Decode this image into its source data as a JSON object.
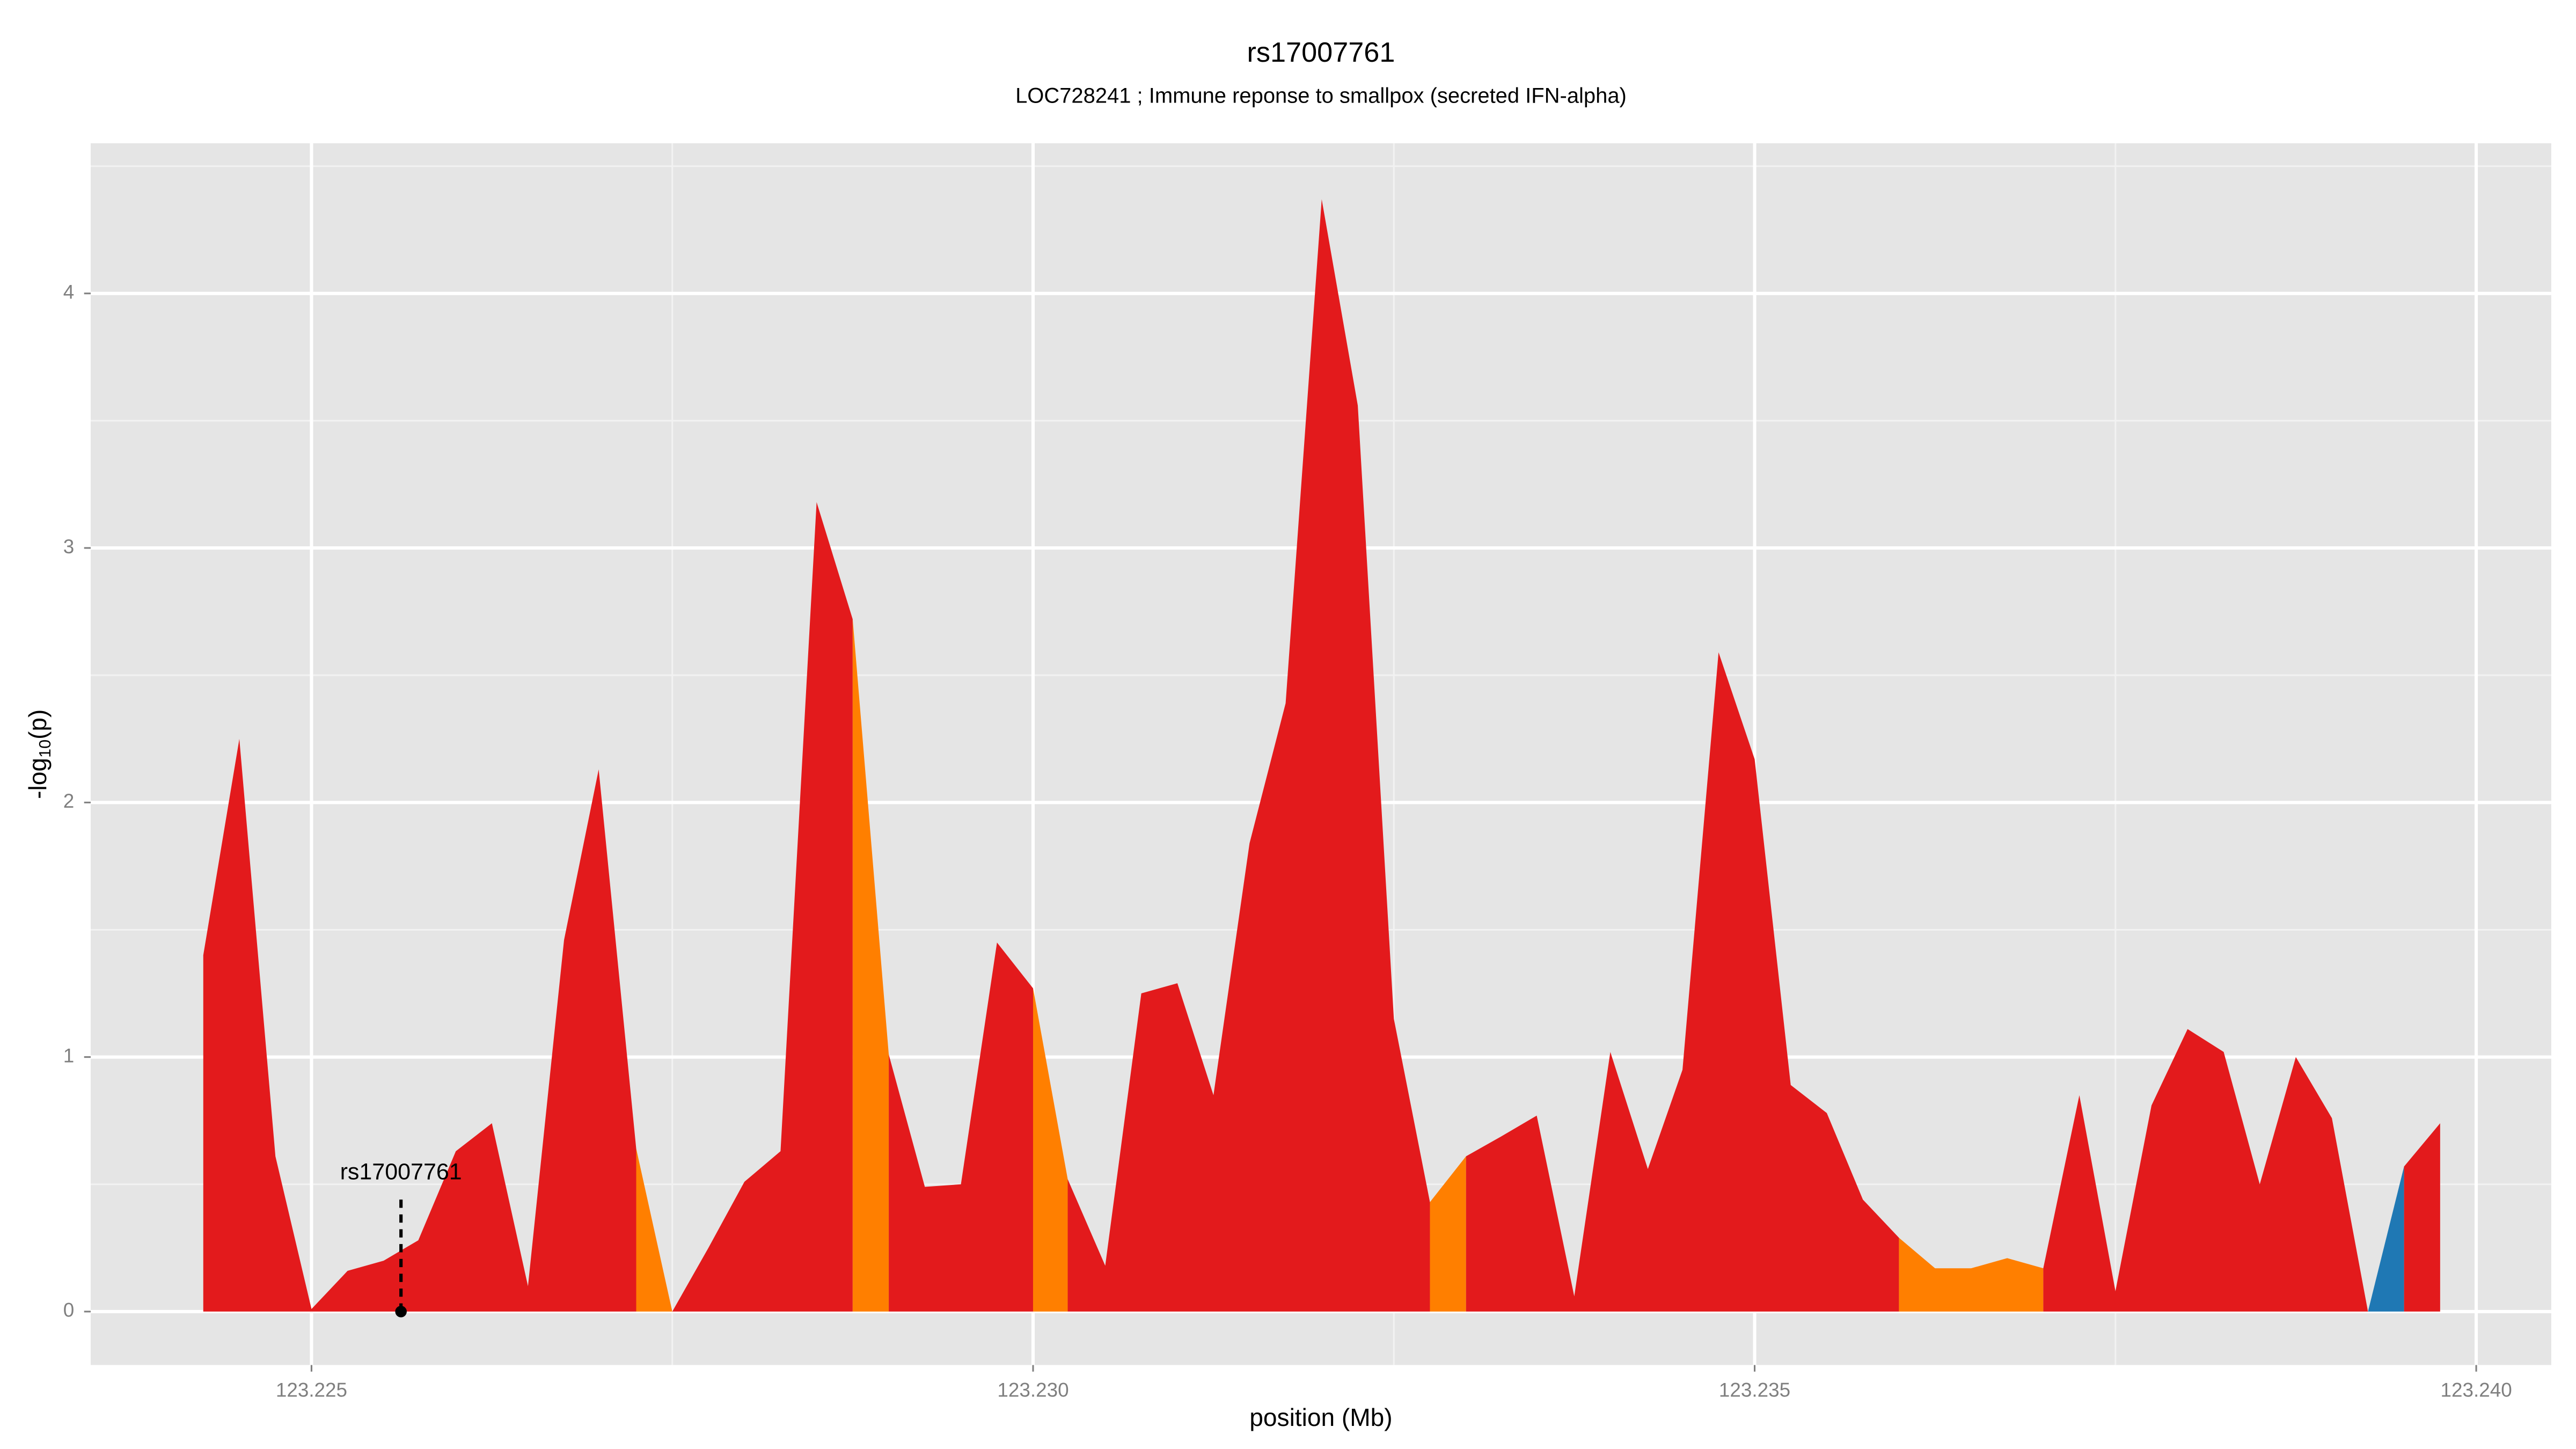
{
  "chart_data": {
    "type": "area",
    "title": "rs17007761",
    "subtitle": "LOC728241 ; Immune reponse to smallpox (secreted IFN-alpha)",
    "xlabel": "position (Mb)",
    "ylabel_parts": [
      "-log",
      "10",
      "(p)"
    ],
    "xlim": [
      123.22347,
      123.24052
    ],
    "ylim": [
      -0.21,
      4.59
    ],
    "xticks": [
      123.225,
      {
        "value": 123.23,
        "label": "123.230"
      },
      123.235,
      {
        "value": 123.24,
        "label": "123.240"
      }
    ],
    "yticks": [
      0,
      1,
      2,
      3,
      4
    ],
    "xminor_ticks": [
      123.2275,
      123.2325,
      123.2375
    ],
    "yminor_ticks": [
      0.5,
      1.5,
      2.5,
      3.5,
      4.5
    ],
    "grid": true,
    "series": [
      {
        "color": "#e31a1c",
        "x": [
          123.22425,
          123.2245,
          123.22475,
          123.225,
          123.22525,
          123.2255,
          123.22574,
          123.226,
          123.22625,
          123.2265,
          123.22675,
          123.22699,
          123.22725
        ],
        "values": [
          1.4,
          2.25,
          0.61,
          0.01,
          0.16,
          0.2,
          0.28,
          0.63,
          0.74,
          0.1,
          1.46,
          2.13,
          0.64
        ]
      },
      {
        "color": "#ff7f00",
        "x": [
          123.22725,
          123.2275
        ],
        "values": [
          0.64,
          0
        ]
      },
      {
        "color": "#e31a1c",
        "x": [
          123.2275,
          123.22775,
          123.228,
          123.22825,
          123.2285,
          123.22875
        ],
        "values": [
          0,
          0.25,
          0.51,
          0.63,
          3.18,
          2.72
        ]
      },
      {
        "color": "#ff7f00",
        "x": [
          123.22875,
          123.229
        ],
        "values": [
          2.72,
          1.01
        ]
      },
      {
        "color": "#e31a1c",
        "x": [
          123.229,
          123.22925,
          123.2295,
          123.22975,
          123.23
        ],
        "values": [
          1.01,
          0.49,
          0.5,
          1.45,
          1.27
        ]
      },
      {
        "color": "#ff7f00",
        "x": [
          123.23,
          123.23024
        ],
        "values": [
          1.27,
          0.52
        ]
      },
      {
        "color": "#e31a1c",
        "x": [
          123.23024,
          123.2305,
          123.23075,
          123.231,
          123.23125,
          123.2315,
          123.23175,
          123.232,
          123.23225,
          123.2325,
          123.23275
        ],
        "values": [
          0.52,
          0.18,
          1.25,
          1.29,
          0.85,
          1.84,
          2.39,
          4.37,
          3.56,
          1.15,
          0.43
        ]
      },
      {
        "color": "#ff7f00",
        "x": [
          123.23275,
          123.233
        ],
        "values": [
          0.43,
          0.61
        ]
      },
      {
        "color": "#e31a1c",
        "x": [
          123.233,
          123.23325,
          123.23349,
          123.23375,
          123.234,
          123.23426,
          123.2345,
          123.23475,
          123.235,
          123.23525,
          123.2355,
          123.23575,
          123.236
        ],
        "values": [
          0.61,
          0.69,
          0.77,
          0.06,
          1.02,
          0.56,
          0.95,
          2.59,
          2.17,
          0.89,
          0.78,
          0.44,
          0.29
        ]
      },
      {
        "color": "#ff7f00",
        "x": [
          123.236,
          123.23625,
          123.2365,
          123.23675,
          123.237
        ],
        "values": [
          0.29,
          0.17,
          0.17,
          0.21,
          0.17
        ]
      },
      {
        "color": "#e31a1c",
        "x": [
          123.237,
          123.23725,
          123.2375,
          123.23775,
          123.238,
          123.23825,
          123.2385,
          123.23875,
          123.239,
          123.23925
        ],
        "values": [
          0.17,
          0.85,
          0.08,
          0.81,
          1.11,
          1.02,
          0.5,
          1.0,
          0.76,
          0
        ]
      },
      {
        "color": "#1f78b4",
        "x": [
          123.23925,
          123.2395
        ],
        "values": [
          0,
          0.57
        ]
      },
      {
        "color": "#e31a1c",
        "x": [
          123.2395,
          123.23975
        ],
        "values": [
          0.57,
          0.74
        ]
      }
    ],
    "annotation": {
      "text": "rs17007761",
      "x": 123.22562,
      "y": 0
    }
  }
}
